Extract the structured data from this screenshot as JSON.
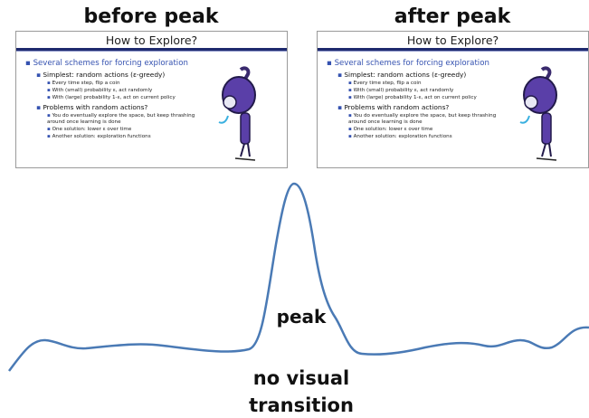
{
  "slides": [
    {
      "label": "before peak",
      "title": "How to Explore?",
      "bullets": [
        {
          "text": "Several schemes for forcing exploration",
          "children": [
            {
              "text": "Simplest: random actions (ε-greedy)",
              "children": [
                {
                  "text": "Every time step, flip a coin"
                },
                {
                  "text": "With (small) probability ε, act randomly"
                },
                {
                  "text": "With (large) probability 1-ε, act on current policy"
                }
              ]
            },
            {
              "text": "Problems with random actions?",
              "children": [
                {
                  "text": "You do eventually explore the space, but keep thrashing around once learning is done"
                },
                {
                  "text": "One solution: lower ε over time"
                },
                {
                  "text": "Another solution: exploration functions"
                }
              ]
            }
          ]
        }
      ]
    },
    {
      "label": "after peak",
      "title": "How to Explore?",
      "bullets": [
        {
          "text": "Several schemes for forcing exploration",
          "children": [
            {
              "text": "Simplest: random actions (ε-greedy)",
              "children": [
                {
                  "text": "Every time step, flip a coin"
                },
                {
                  "text": "With (small) probability ε, act randomly"
                },
                {
                  "text": "With (large) probability 1-ε, act on current policy"
                }
              ]
            },
            {
              "text": "Problems with random actions?",
              "children": [
                {
                  "text": "You do eventually explore the space, but keep thrashing around once learning is done"
                },
                {
                  "text": "One solution: lower ε over time"
                },
                {
                  "text": "Another solution: exploration functions"
                }
              ]
            }
          ]
        }
      ]
    }
  ],
  "curve_labels": {
    "peak": "peak",
    "transition": [
      "no visual",
      "transition"
    ]
  }
}
